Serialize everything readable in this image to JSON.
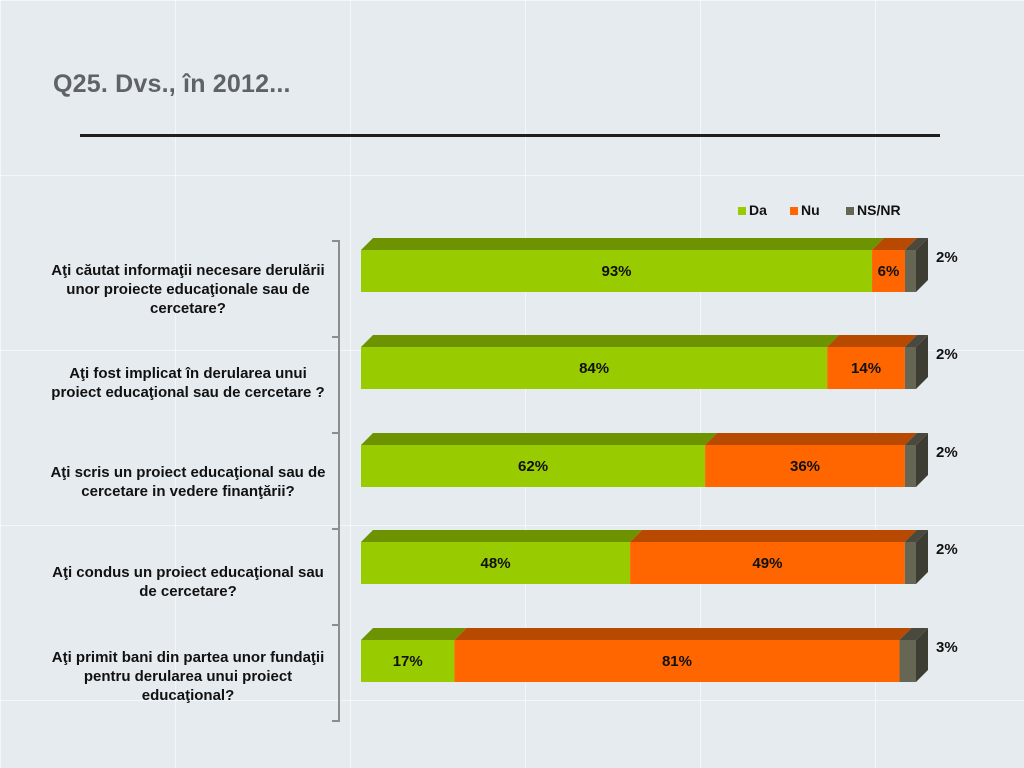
{
  "title": "Q25. Dvs., în 2012...",
  "colors": {
    "Da": "#99cc00",
    "Nu": "#ff6600",
    "NS/NR": "#666655"
  },
  "chart_data": {
    "type": "bar",
    "orientation": "horizontal",
    "stacked": true,
    "percent": true,
    "legend_position": "top-right",
    "grid": false,
    "xlim": [
      0,
      100
    ],
    "categories": [
      "Aţi căutat informaţii necesare derulării unor proiecte educaţionale sau de cercetare?",
      "Aţi fost implicat în derularea unui proiect educaţional sau de cercetare ?",
      "Aţi scris un proiect educaţional sau de cercetare in vedere finanţării?",
      "Aţi condus un proiect educaţional sau de cercetare?",
      "Aţi primit bani din partea unor fundaţii pentru derularea unui proiect educaţional?"
    ],
    "series": [
      {
        "name": "Da",
        "values": [
          93,
          84,
          62,
          48,
          17
        ],
        "labels": [
          "93%",
          "84%",
          "62%",
          "48%",
          "17%"
        ]
      },
      {
        "name": "Nu",
        "values": [
          6,
          14,
          36,
          49,
          81
        ],
        "labels": [
          "6%",
          "14%",
          "36%",
          "49%",
          "81%"
        ]
      },
      {
        "name": "NS/NR",
        "values": [
          2,
          2,
          2,
          2,
          3
        ],
        "labels": [
          "2%",
          "2%",
          "2%",
          "2%",
          "3%"
        ]
      }
    ]
  }
}
